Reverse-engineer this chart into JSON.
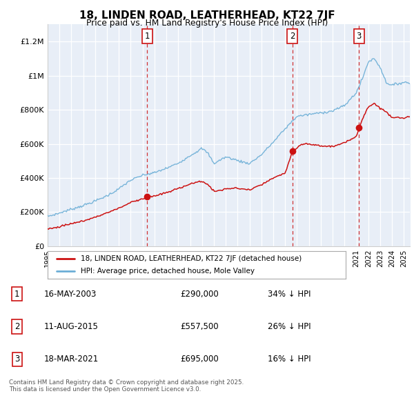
{
  "title": "18, LINDEN ROAD, LEATHERHEAD, KT22 7JF",
  "subtitle": "Price paid vs. HM Land Registry's House Price Index (HPI)",
  "ylim": [
    0,
    1300000
  ],
  "xlim_start": 1995.0,
  "xlim_end": 2025.5,
  "hpi_color": "#6BAED6",
  "price_color": "#CC1111",
  "vline_color": "#CC1111",
  "annotation_border_color": "#CC1111",
  "transactions": [
    {
      "num": 1,
      "date": "16-MAY-2003",
      "price": 290000,
      "price_str": "£290,000",
      "discount": "34% ↓ HPI",
      "year": 2003.37
    },
    {
      "num": 2,
      "date": "11-AUG-2015",
      "price": 557500,
      "price_str": "£557,500",
      "discount": "26% ↓ HPI",
      "year": 2015.62
    },
    {
      "num": 3,
      "date": "18-MAR-2021",
      "price": 695000,
      "price_str": "£695,000",
      "discount": "16% ↓ HPI",
      "year": 2021.21
    }
  ],
  "legend_label_price": "18, LINDEN ROAD, LEATHERHEAD, KT22 7JF (detached house)",
  "legend_label_hpi": "HPI: Average price, detached house, Mole Valley",
  "footer": "Contains HM Land Registry data © Crown copyright and database right 2025.\nThis data is licensed under the Open Government Licence v3.0.",
  "background_color": "#E8EEF7",
  "yticks": [
    0,
    200000,
    400000,
    600000,
    800000,
    1000000,
    1200000
  ],
  "ylabels": [
    "£0",
    "£200K",
    "£400K",
    "£600K",
    "£800K",
    "£1M",
    "£1.2M"
  ]
}
